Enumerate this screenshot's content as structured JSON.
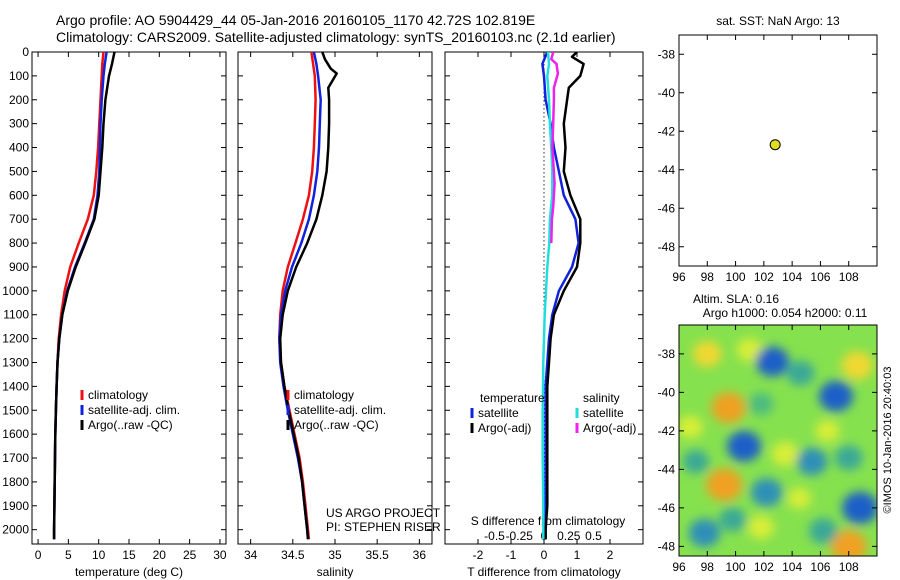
{
  "header": {
    "line1": "Argo profile: AO 5904429_44 05-Jan-2016 20160105_1170 42.72S 102.819E",
    "line2": "Climatology: CARS2009. Satellite-adjusted climatology: synTS_20160103.nc (2.1d earlier)"
  },
  "colors": {
    "climatology": "#ee1111",
    "satellite": "#1122dd",
    "argo": "#000000",
    "sat_salinity": "#22dddd",
    "argo_salinity_diff": "#ee22ee",
    "marker": "#dddd22"
  },
  "depth_axis": {
    "ylim": [
      2060,
      0
    ],
    "ticks": [
      0,
      100,
      200,
      300,
      400,
      500,
      600,
      700,
      800,
      900,
      1000,
      1100,
      1200,
      1300,
      1400,
      1500,
      1600,
      1700,
      1800,
      1900,
      2000
    ]
  },
  "legend": {
    "climatology": "climatology",
    "satellite": "satellite-adj. clim.",
    "argo": "Argo(..raw -QC)"
  },
  "diff_legend": {
    "temp_header": "temperature",
    "sal_header": "salinity",
    "satellite": "satellite",
    "argo": "Argo(-adj)"
  },
  "credits": {
    "line1": "US ARGO PROJECT",
    "line2": "PI: STEPHEN RISER"
  },
  "chart_data": [
    {
      "type": "line",
      "xlabel": "temperature (deg C)",
      "xlim": [
        -1,
        31
      ],
      "xticks": [
        0,
        5,
        10,
        15,
        20,
        25,
        30
      ],
      "series": [
        {
          "key": "climatology",
          "depth": [
            0,
            50,
            100,
            200,
            300,
            400,
            500,
            600,
            700,
            800,
            900,
            1000,
            1100,
            1200,
            1300,
            1400,
            1500,
            1600,
            1700,
            1800,
            1900,
            2000,
            2040
          ],
          "values": [
            10.8,
            10.6,
            10.5,
            10.3,
            10.1,
            9.9,
            9.6,
            9.2,
            8.2,
            6.7,
            5.3,
            4.4,
            3.8,
            3.4,
            3.2,
            3.05,
            2.95,
            2.85,
            2.8,
            2.75,
            2.7,
            2.65,
            2.65
          ]
        },
        {
          "key": "satellite",
          "depth": [
            0,
            50,
            100,
            200,
            300,
            400,
            500,
            600,
            700,
            800,
            900,
            1000,
            1100,
            1200,
            1300,
            1400,
            1500,
            1600,
            1700,
            1800,
            1900,
            2000,
            2040
          ],
          "values": [
            11.3,
            11.0,
            10.8,
            10.5,
            10.3,
            10.2,
            10.1,
            9.8,
            9.2,
            7.7,
            6.1,
            4.8,
            4.0,
            3.5,
            3.2,
            3.05,
            2.95,
            2.85,
            2.8,
            2.75,
            2.7,
            2.65,
            2.65
          ]
        },
        {
          "key": "argo",
          "depth": [
            0,
            50,
            100,
            200,
            300,
            400,
            500,
            600,
            700,
            800,
            900,
            1000,
            1100,
            1200,
            1300,
            1400,
            1500,
            1600,
            1700,
            1800,
            1900,
            2000,
            2040
          ],
          "values": [
            12.6,
            12.2,
            11.7,
            11.1,
            10.8,
            10.6,
            10.3,
            10.0,
            9.3,
            7.8,
            6.2,
            4.9,
            4.0,
            3.5,
            3.2,
            3.05,
            2.95,
            2.85,
            2.8,
            2.75,
            2.7,
            2.65,
            2.65
          ]
        }
      ]
    },
    {
      "type": "line",
      "xlabel": "salinity",
      "xlim": [
        33.85,
        36.15
      ],
      "xticks": [
        34,
        34.5,
        35,
        35.5,
        36
      ],
      "series": [
        {
          "key": "climatology",
          "depth": [
            0,
            50,
            100,
            200,
            300,
            400,
            500,
            600,
            700,
            800,
            900,
            1000,
            1100,
            1200,
            1300,
            1400,
            1500,
            1600,
            1700,
            1800,
            1900,
            2000,
            2040
          ],
          "values": [
            34.72,
            34.74,
            34.76,
            34.77,
            34.76,
            34.75,
            34.73,
            34.69,
            34.62,
            34.53,
            34.44,
            34.38,
            34.35,
            34.34,
            34.36,
            34.4,
            34.46,
            34.52,
            34.58,
            34.62,
            34.65,
            34.68,
            34.69
          ]
        },
        {
          "key": "satellite",
          "depth": [
            0,
            50,
            100,
            200,
            300,
            400,
            500,
            600,
            700,
            800,
            900,
            1000,
            1100,
            1200,
            1300,
            1400,
            1500,
            1600,
            1700,
            1800,
            1900,
            2000,
            2040
          ],
          "values": [
            34.75,
            34.78,
            34.8,
            34.83,
            34.82,
            34.81,
            34.79,
            34.75,
            34.69,
            34.6,
            34.49,
            34.41,
            34.36,
            34.34,
            34.35,
            34.39,
            34.44,
            34.5,
            34.56,
            34.61,
            34.64,
            34.67,
            34.68
          ]
        },
        {
          "key": "argo",
          "depth": [
            0,
            30,
            70,
            90,
            150,
            200,
            300,
            400,
            500,
            600,
            700,
            800,
            900,
            1000,
            1100,
            1200,
            1300,
            1400,
            1500,
            1600,
            1700,
            1800,
            1900,
            2000,
            2040
          ],
          "values": [
            34.85,
            34.88,
            34.95,
            35.02,
            34.92,
            34.93,
            34.93,
            34.92,
            34.9,
            34.85,
            34.78,
            34.67,
            34.54,
            34.44,
            34.38,
            34.35,
            34.36,
            34.4,
            34.45,
            34.51,
            34.57,
            34.61,
            34.64,
            34.67,
            34.68
          ]
        }
      ]
    },
    {
      "type": "line",
      "xlabel": "T difference from climatology",
      "xlabel2": "S difference from climatology",
      "xlim": [
        -3.0,
        3.0
      ],
      "xticks": [
        -2,
        -1,
        0,
        1,
        2
      ],
      "xticks2": [
        "-0.5",
        "-0.25",
        "0",
        "0.25",
        "0.5"
      ],
      "series": [
        {
          "key": "temp_satellite",
          "depth": [
            0,
            50,
            100,
            200,
            300,
            400,
            500,
            600,
            700,
            800,
            900,
            1000,
            1100,
            1200,
            1300,
            1400,
            1500,
            1600,
            1700,
            1800,
            1900,
            2000,
            2040
          ],
          "values": [
            0.1,
            -0.05,
            0.0,
            0.05,
            0.2,
            0.3,
            0.45,
            0.6,
            0.95,
            1.05,
            0.85,
            0.45,
            0.25,
            0.15,
            0.1,
            0.05,
            0.05,
            0.05,
            0.05,
            0.05,
            0.05,
            0.05,
            0.05
          ]
        },
        {
          "key": "temp_argo",
          "depth": [
            0,
            20,
            50,
            100,
            150,
            200,
            300,
            400,
            500,
            600,
            700,
            800,
            900,
            1000,
            1100,
            1200,
            1300,
            1400,
            1500,
            1600,
            1700,
            1800,
            1900,
            2000,
            2040
          ],
          "values": [
            1.0,
            0.85,
            1.2,
            1.1,
            0.75,
            0.7,
            0.6,
            0.65,
            0.6,
            0.8,
            1.1,
            1.1,
            1.0,
            0.6,
            0.3,
            0.2,
            0.15,
            0.1,
            0.1,
            0.1,
            0.1,
            0.1,
            0.1,
            0.05,
            0.05
          ]
        },
        {
          "key": "sal_satellite",
          "depth": [
            0,
            50,
            100,
            200,
            300,
            400,
            500,
            600,
            700,
            800,
            900,
            1000,
            1100,
            1200,
            1300,
            1400,
            1500,
            1600,
            1700,
            1800,
            1900,
            2000,
            2040
          ],
          "values": [
            0.12,
            0.15,
            0.1,
            0.15,
            0.18,
            0.22,
            0.25,
            0.25,
            0.18,
            0.16,
            0.1,
            0.06,
            0.02,
            0.0,
            -0.02,
            -0.03,
            -0.04,
            -0.04,
            -0.04,
            -0.03,
            -0.02,
            -0.02,
            -0.02
          ]
        },
        {
          "key": "sal_argo",
          "depth": [
            0,
            30,
            50,
            70,
            90,
            150,
            200,
            300,
            400,
            500,
            550,
            600,
            650,
            700,
            800
          ],
          "values": [
            0.28,
            0.22,
            0.38,
            0.4,
            0.42,
            0.3,
            0.3,
            0.28,
            0.25,
            0.3,
            0.32,
            0.3,
            0.28,
            0.24,
            0.22
          ]
        }
      ]
    },
    {
      "type": "scatter",
      "title": "sat. SST: NaN  Argo: 13",
      "xlim": [
        96,
        110
      ],
      "ylim": [
        -49,
        -37
      ],
      "xticks": [
        96,
        98,
        100,
        102,
        104,
        106,
        108
      ],
      "yticks": [
        -38,
        -40,
        -42,
        -44,
        -46,
        -48
      ],
      "points": [
        {
          "x": 102.8,
          "y": -42.7
        }
      ]
    },
    {
      "type": "heatmap",
      "title": "Altim. SLA: 0.16",
      "subtitle": "Argo h1000: 0.054 h2000: 0.11",
      "side_label": "©IMOS 10-Jan-2016 20:40:03",
      "xlim": [
        96,
        110
      ],
      "ylim": [
        -48.5,
        -36.5
      ],
      "xticks": [
        96,
        98,
        100,
        102,
        104,
        106,
        108
      ],
      "yticks": [
        -38,
        -40,
        -42,
        -44,
        -46,
        -48
      ],
      "blobs": [
        {
          "x": 98.0,
          "y": -38.0,
          "v": 0.6
        },
        {
          "x": 99.5,
          "y": -40.8,
          "v": 0.9
        },
        {
          "x": 101.0,
          "y": -37.8,
          "v": 0.45
        },
        {
          "x": 108.6,
          "y": -38.6,
          "v": 0.75
        },
        {
          "x": 99.2,
          "y": -44.8,
          "v": 1.0
        },
        {
          "x": 108.0,
          "y": -48.0,
          "v": 1.0
        },
        {
          "x": 103.5,
          "y": -43.2,
          "v": 0.5
        },
        {
          "x": 106.5,
          "y": -42.0,
          "v": 0.35
        },
        {
          "x": 101.8,
          "y": -47.0,
          "v": 0.45
        },
        {
          "x": 104.5,
          "y": -45.5,
          "v": 0.3
        },
        {
          "x": 96.8,
          "y": -41.8,
          "v": 0.4
        },
        {
          "x": 102.6,
          "y": -38.4,
          "v": -0.85
        },
        {
          "x": 107.1,
          "y": -40.2,
          "v": -0.9
        },
        {
          "x": 100.6,
          "y": -42.8,
          "v": -0.9
        },
        {
          "x": 105.4,
          "y": -43.6,
          "v": -0.7
        },
        {
          "x": 108.8,
          "y": -46.0,
          "v": -1.0
        },
        {
          "x": 97.8,
          "y": -47.3,
          "v": -0.75
        },
        {
          "x": 102.2,
          "y": -45.2,
          "v": -0.75
        },
        {
          "x": 104.6,
          "y": -39.0,
          "v": -0.55
        },
        {
          "x": 97.2,
          "y": -43.6,
          "v": -0.45
        },
        {
          "x": 106.2,
          "y": -47.2,
          "v": -0.6
        },
        {
          "x": 99.8,
          "y": -46.6,
          "v": -0.5
        },
        {
          "x": 108.0,
          "y": -43.4,
          "v": -0.55
        },
        {
          "x": 101.8,
          "y": -40.6,
          "v": -0.4
        }
      ]
    }
  ]
}
